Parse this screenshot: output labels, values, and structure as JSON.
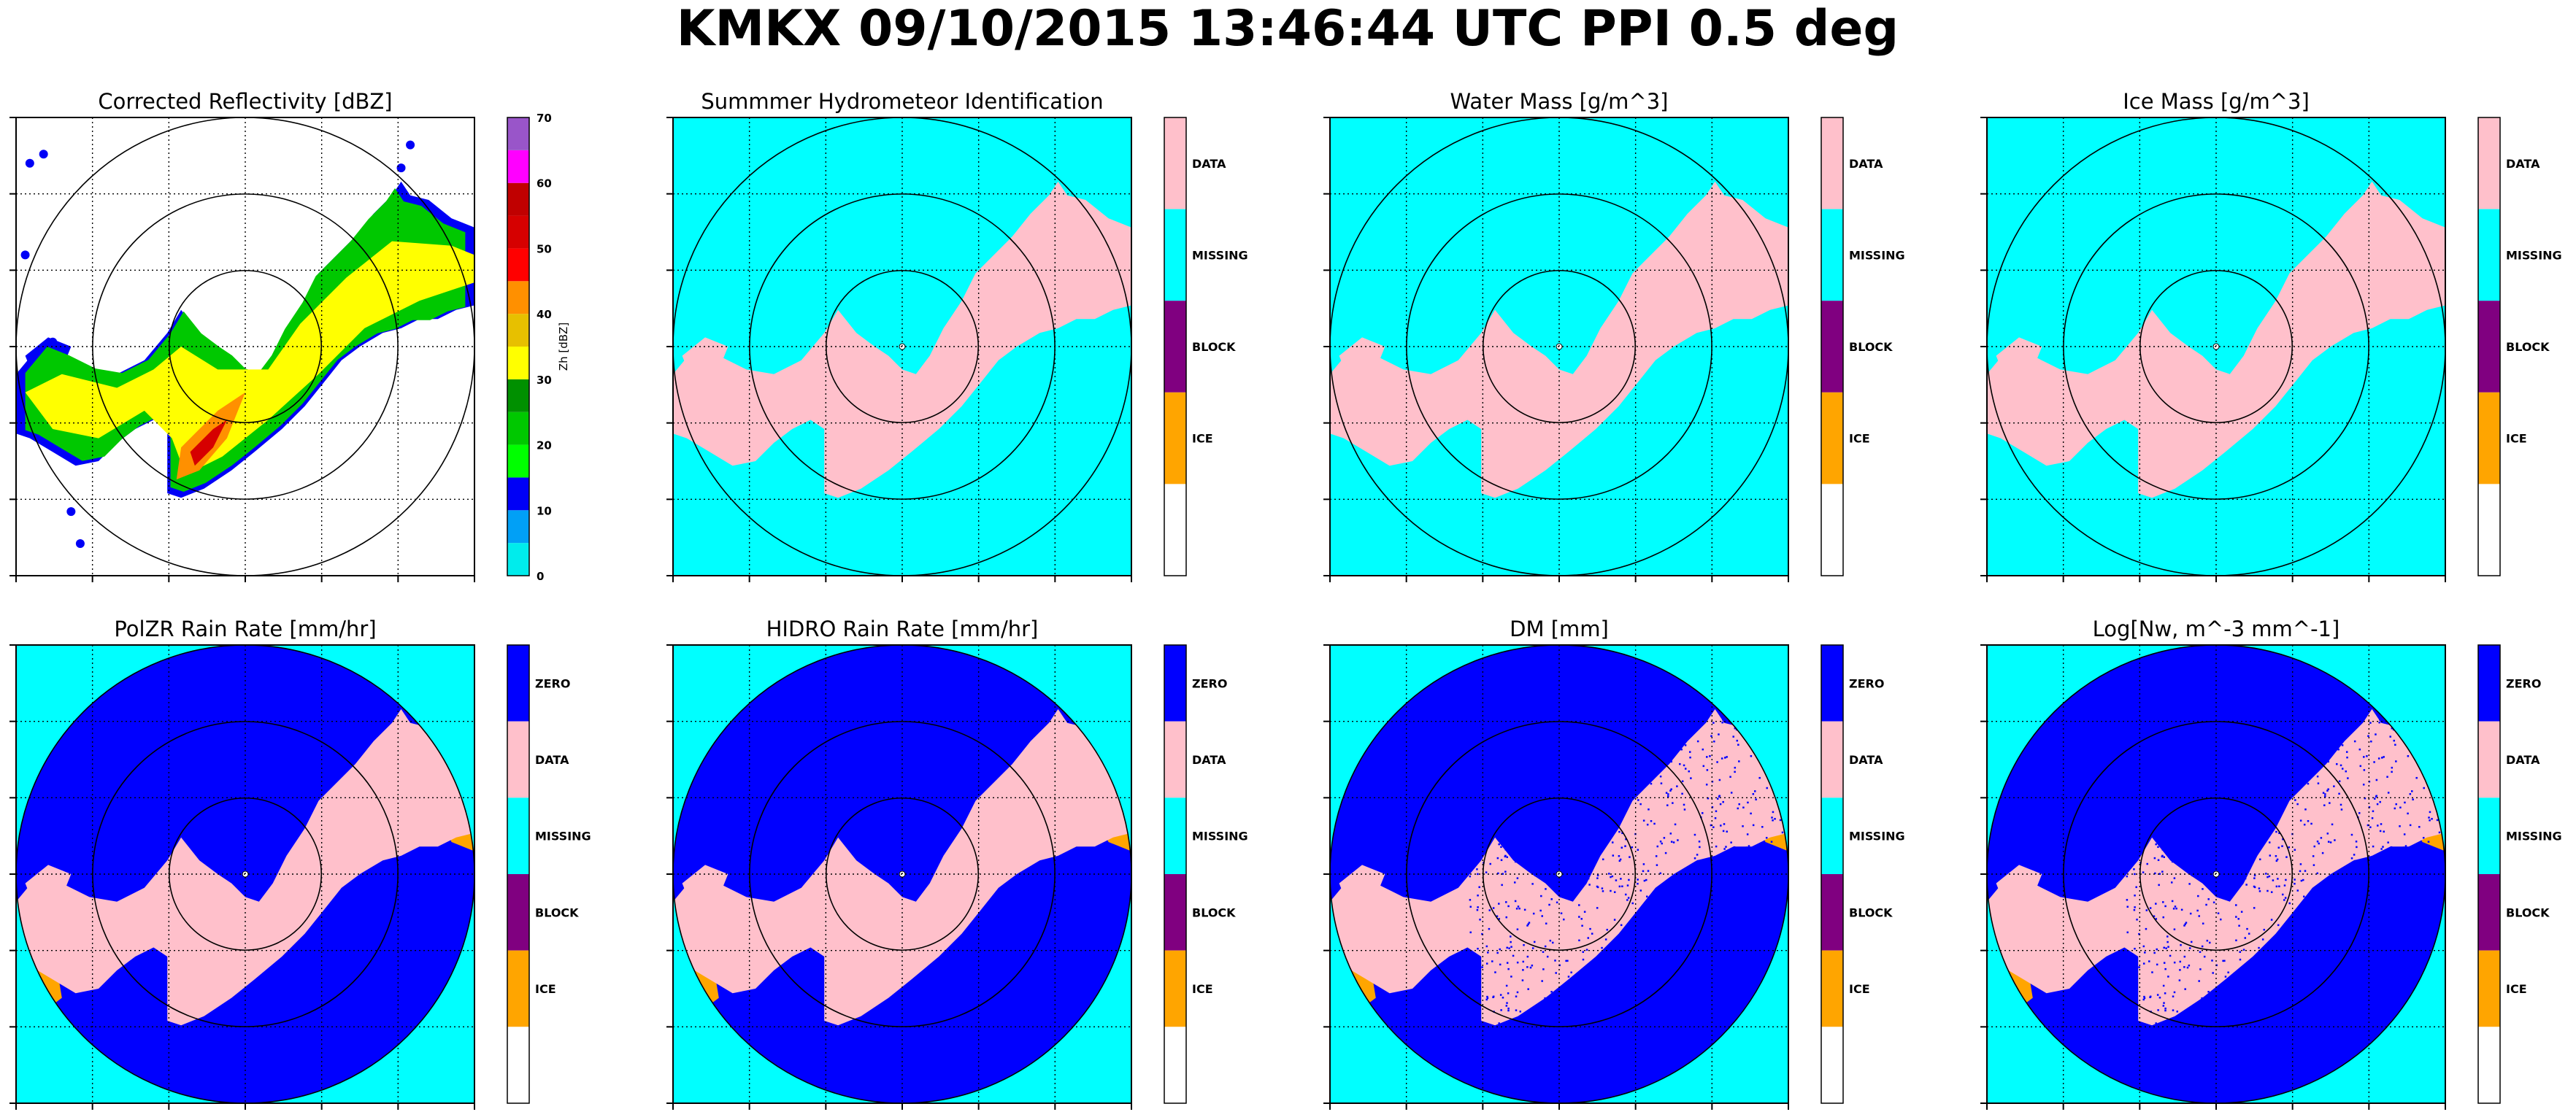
{
  "suptitle": "KMKX 09/10/2015 13:46:44 UTC PPI 0.5 deg",
  "colors": {
    "background_cyan": "#00ffff",
    "echo_pink": "#ffc0cb",
    "zero_blue": "#0000ff",
    "block_purple": "#800080",
    "ice_orange": "#ffa500",
    "ring_color": "#000000"
  },
  "chart_data": [
    {
      "type": "heatmap",
      "title": "Corrected Reflectivity [dBZ]",
      "field": "reflectivity",
      "colorbar": {
        "kind": "continuous",
        "label": "Zh [dBZ]",
        "ticks": [
          "0",
          "10",
          "20",
          "30",
          "40",
          "50",
          "60",
          "70"
        ],
        "range": [
          0,
          70
        ],
        "bands": [
          {
            "from": 0,
            "to": 5,
            "color": "#00ecec"
          },
          {
            "from": 5,
            "to": 10,
            "color": "#01a0f6"
          },
          {
            "from": 10,
            "to": 15,
            "color": "#0000f6"
          },
          {
            "from": 15,
            "to": 20,
            "color": "#00ff00"
          },
          {
            "from": 20,
            "to": 25,
            "color": "#00c800"
          },
          {
            "from": 25,
            "to": 30,
            "color": "#009000"
          },
          {
            "from": 30,
            "to": 35,
            "color": "#ffff00"
          },
          {
            "from": 35,
            "to": 40,
            "color": "#e7c000"
          },
          {
            "from": 40,
            "to": 45,
            "color": "#ff9000"
          },
          {
            "from": 45,
            "to": 50,
            "color": "#ff0000"
          },
          {
            "from": 50,
            "to": 55,
            "color": "#d60000"
          },
          {
            "from": 55,
            "to": 60,
            "color": "#c00000"
          },
          {
            "from": 60,
            "to": 65,
            "color": "#ff00ff"
          },
          {
            "from": 65,
            "to": 70,
            "color": "#9955c9"
          }
        ]
      },
      "range_rings": 3,
      "background": "#ffffff"
    },
    {
      "type": "heatmap",
      "title": "Summmer Hydrometeor Identification",
      "field": "category",
      "colorbar": {
        "kind": "categorical",
        "categories": [
          "DATA",
          "MISSING",
          "BLOCK",
          "ICE",
          ""
        ],
        "colors": [
          "#ffc0cb",
          "#00ffff",
          "#800080",
          "#ffa500",
          "#ffffff"
        ]
      },
      "range_rings": 3,
      "background": "#00ffff",
      "fill_disk": false
    },
    {
      "type": "heatmap",
      "title": "Water Mass [g/m^3]",
      "field": "category",
      "colorbar": {
        "kind": "categorical",
        "categories": [
          "DATA",
          "MISSING",
          "BLOCK",
          "ICE",
          ""
        ],
        "colors": [
          "#ffc0cb",
          "#00ffff",
          "#800080",
          "#ffa500",
          "#ffffff"
        ]
      },
      "range_rings": 3,
      "background": "#00ffff",
      "fill_disk": false
    },
    {
      "type": "heatmap",
      "title": "Ice Mass [g/m^3]",
      "field": "category",
      "colorbar": {
        "kind": "categorical",
        "categories": [
          "DATA",
          "MISSING",
          "BLOCK",
          "ICE",
          ""
        ],
        "colors": [
          "#ffc0cb",
          "#00ffff",
          "#800080",
          "#ffa500",
          "#ffffff"
        ]
      },
      "range_rings": 3,
      "background": "#00ffff",
      "fill_disk": false
    },
    {
      "type": "heatmap",
      "title": "PolZR Rain Rate [mm/hr]",
      "field": "category",
      "colorbar": {
        "kind": "categorical",
        "categories": [
          "ZERO",
          "DATA",
          "MISSING",
          "BLOCK",
          "ICE",
          ""
        ],
        "colors": [
          "#0000ff",
          "#ffc0cb",
          "#00ffff",
          "#800080",
          "#ffa500",
          "#ffffff"
        ]
      },
      "range_rings": 3,
      "background": "#00ffff",
      "fill_disk": true,
      "speckle": false
    },
    {
      "type": "heatmap",
      "title": "HIDRO Rain Rate [mm/hr]",
      "field": "category",
      "colorbar": {
        "kind": "categorical",
        "categories": [
          "ZERO",
          "DATA",
          "MISSING",
          "BLOCK",
          "ICE",
          ""
        ],
        "colors": [
          "#0000ff",
          "#ffc0cb",
          "#00ffff",
          "#800080",
          "#ffa500",
          "#ffffff"
        ]
      },
      "range_rings": 3,
      "background": "#00ffff",
      "fill_disk": true,
      "speckle": false
    },
    {
      "type": "heatmap",
      "title": "DM [mm]",
      "field": "category",
      "colorbar": {
        "kind": "categorical",
        "categories": [
          "ZERO",
          "DATA",
          "MISSING",
          "BLOCK",
          "ICE",
          ""
        ],
        "colors": [
          "#0000ff",
          "#ffc0cb",
          "#00ffff",
          "#800080",
          "#ffa500",
          "#ffffff"
        ]
      },
      "range_rings": 3,
      "background": "#00ffff",
      "fill_disk": true,
      "speckle": true
    },
    {
      "type": "heatmap",
      "title": "Log[Nw, m^-3 mm^-1]",
      "field": "category",
      "colorbar": {
        "kind": "categorical",
        "categories": [
          "ZERO",
          "DATA",
          "MISSING",
          "BLOCK",
          "ICE",
          ""
        ],
        "colors": [
          "#0000ff",
          "#ffc0cb",
          "#00ffff",
          "#800080",
          "#ffa500",
          "#ffffff"
        ]
      },
      "range_rings": 3,
      "background": "#00ffff",
      "fill_disk": true,
      "speckle": true
    }
  ]
}
